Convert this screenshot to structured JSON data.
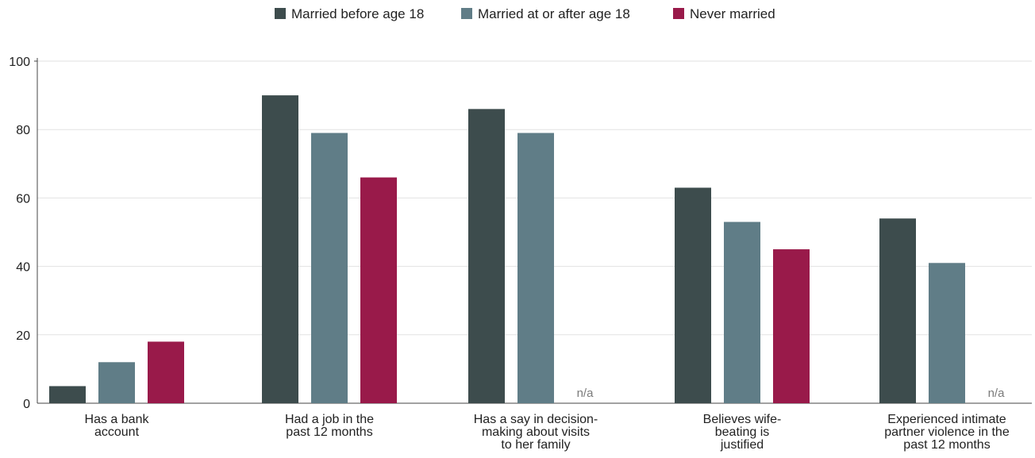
{
  "chart_data": {
    "type": "bar",
    "categories": [
      [
        "Has a bank",
        "account"
      ],
      [
        "Had a job in the",
        "past 12 months"
      ],
      [
        "Has a say in decision-",
        "making about visits",
        "to her family"
      ],
      [
        "Believes wife-",
        "beating is",
        "justified"
      ],
      [
        "Experienced intimate",
        "partner violence in the",
        "past 12 months"
      ]
    ],
    "series": [
      {
        "name": "Married before age 18",
        "color": "#3d4c4d",
        "values": [
          5,
          90,
          86,
          63,
          54
        ]
      },
      {
        "name": "Married at or after age 18",
        "color": "#607d87",
        "values": [
          12,
          79,
          79,
          53,
          41
        ]
      },
      {
        "name": "Never married",
        "color": "#991a4a",
        "values": [
          18,
          66,
          null,
          45,
          null
        ]
      }
    ],
    "missing_label": "n/a",
    "ylim": [
      0,
      100
    ],
    "yticks": [
      0,
      20,
      40,
      60,
      80,
      100
    ],
    "grid": true,
    "legend_position": "top-center",
    "title": "",
    "xlabel": "",
    "ylabel": ""
  }
}
